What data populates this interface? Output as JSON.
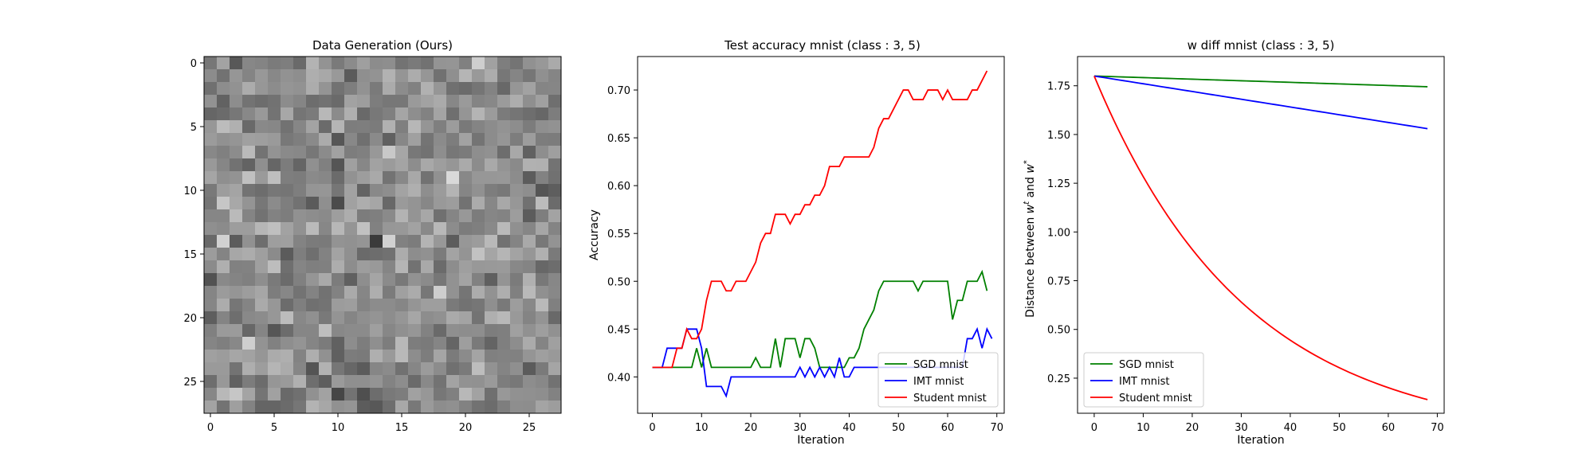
{
  "chart_data": [
    {
      "type": "heatmap",
      "title": "Data Generation (Ours)",
      "xlabel": "",
      "ylabel": "",
      "grid_size": 28,
      "xticks": [
        0,
        5,
        10,
        15,
        20,
        25
      ],
      "yticks": [
        0,
        5,
        10,
        15,
        20,
        25
      ],
      "colormap": "gray",
      "seed": 1337
    },
    {
      "type": "line",
      "title": "Test accuracy mnist (class : 3, 5)",
      "xlabel": "Iteration",
      "ylabel": "Accuracy",
      "xlim": [
        -3,
        71.5
      ],
      "ylim": [
        0.362,
        0.735
      ],
      "xticks": [
        0,
        10,
        20,
        30,
        40,
        50,
        60,
        70
      ],
      "yticks": [
        0.4,
        0.45,
        0.5,
        0.55,
        0.6,
        0.65,
        0.7
      ],
      "ytick_labels": [
        "0.40",
        "0.45",
        "0.50",
        "0.55",
        "0.60",
        "0.65",
        "0.70"
      ],
      "legend_position": "lower-right",
      "series": [
        {
          "name": "SGD mnist",
          "color": "#008000",
          "values": [
            0.41,
            0.41,
            0.41,
            0.41,
            0.41,
            0.41,
            0.41,
            0.41,
            0.41,
            0.43,
            0.41,
            0.43,
            0.41,
            0.41,
            0.41,
            0.41,
            0.41,
            0.41,
            0.41,
            0.41,
            0.41,
            0.42,
            0.41,
            0.41,
            0.41,
            0.44,
            0.41,
            0.44,
            0.44,
            0.44,
            0.42,
            0.44,
            0.44,
            0.43,
            0.41,
            0.41,
            0.41,
            0.41,
            0.41,
            0.41,
            0.42,
            0.42,
            0.43,
            0.45,
            0.46,
            0.47,
            0.49,
            0.5,
            0.5,
            0.5,
            0.5,
            0.5,
            0.5,
            0.5,
            0.49,
            0.5,
            0.5,
            0.5,
            0.5,
            0.5,
            0.5,
            0.46,
            0.48,
            0.48,
            0.5,
            0.5,
            0.5,
            0.51,
            0.49
          ]
        },
        {
          "name": "IMT mnist",
          "color": "#0000ff",
          "values": [
            0.41,
            0.41,
            0.41,
            0.43,
            0.43,
            0.43,
            0.43,
            0.45,
            0.45,
            0.45,
            0.43,
            0.39,
            0.39,
            0.39,
            0.39,
            0.38,
            0.4,
            0.4,
            0.4,
            0.4,
            0.4,
            0.4,
            0.4,
            0.4,
            0.4,
            0.4,
            0.4,
            0.4,
            0.4,
            0.4,
            0.41,
            0.4,
            0.41,
            0.4,
            0.41,
            0.4,
            0.41,
            0.4,
            0.42,
            0.4,
            0.4,
            0.41,
            0.41,
            0.41,
            0.41,
            0.41,
            0.41,
            0.41,
            0.41,
            0.41,
            0.41,
            0.41,
            0.41,
            0.41,
            0.41,
            0.41,
            0.41,
            0.41,
            0.41,
            0.41,
            0.41,
            0.41,
            0.41,
            0.41,
            0.44,
            0.44,
            0.45,
            0.43,
            0.45,
            0.44
          ]
        },
        {
          "name": "Student mnist",
          "color": "#ff0000",
          "values": [
            0.41,
            0.41,
            0.41,
            0.41,
            0.41,
            0.43,
            0.43,
            0.45,
            0.44,
            0.44,
            0.45,
            0.48,
            0.5,
            0.5,
            0.5,
            0.49,
            0.49,
            0.5,
            0.5,
            0.5,
            0.51,
            0.52,
            0.54,
            0.55,
            0.55,
            0.57,
            0.57,
            0.57,
            0.56,
            0.57,
            0.57,
            0.58,
            0.58,
            0.59,
            0.59,
            0.6,
            0.62,
            0.62,
            0.62,
            0.63,
            0.63,
            0.63,
            0.63,
            0.63,
            0.63,
            0.64,
            0.66,
            0.67,
            0.67,
            0.68,
            0.69,
            0.7,
            0.7,
            0.69,
            0.69,
            0.69,
            0.7,
            0.7,
            0.7,
            0.69,
            0.7,
            0.69,
            0.69,
            0.69,
            0.69,
            0.7,
            0.7,
            0.71,
            0.72
          ]
        }
      ]
    },
    {
      "type": "line",
      "title": "w diff mnist (class : 3, 5)",
      "xlabel": "Iteration",
      "ylabel": "Distance between w^t and w*",
      "ylabel_base": "Distance between ",
      "ylabel_w1": "w",
      "ylabel_sup1": "t",
      "ylabel_and": " and ",
      "ylabel_w2": "w",
      "ylabel_sup2": "*",
      "xlim": [
        -3.4,
        71.4
      ],
      "ylim": [
        0.07,
        1.9
      ],
      "xticks": [
        0,
        10,
        20,
        30,
        40,
        50,
        60,
        70
      ],
      "yticks": [
        0.25,
        0.5,
        0.75,
        1.0,
        1.25,
        1.5,
        1.75
      ],
      "ytick_labels": [
        "0.25",
        "0.50",
        "0.75",
        "1.00",
        "1.25",
        "1.50",
        "1.75"
      ],
      "legend_position": "lower-left",
      "series": [
        {
          "name": "SGD mnist",
          "color": "#008000",
          "x_end": 68,
          "start": 1.8,
          "end": 1.745,
          "shape": "linear"
        },
        {
          "name": "IMT mnist",
          "color": "#0000ff",
          "x_end": 68,
          "start": 1.8,
          "end": 1.53,
          "shape": "linear"
        },
        {
          "name": "Student mnist",
          "color": "#ff0000",
          "x_end": 68,
          "start": 1.8,
          "end": 0.14,
          "shape": "curve"
        }
      ]
    }
  ]
}
